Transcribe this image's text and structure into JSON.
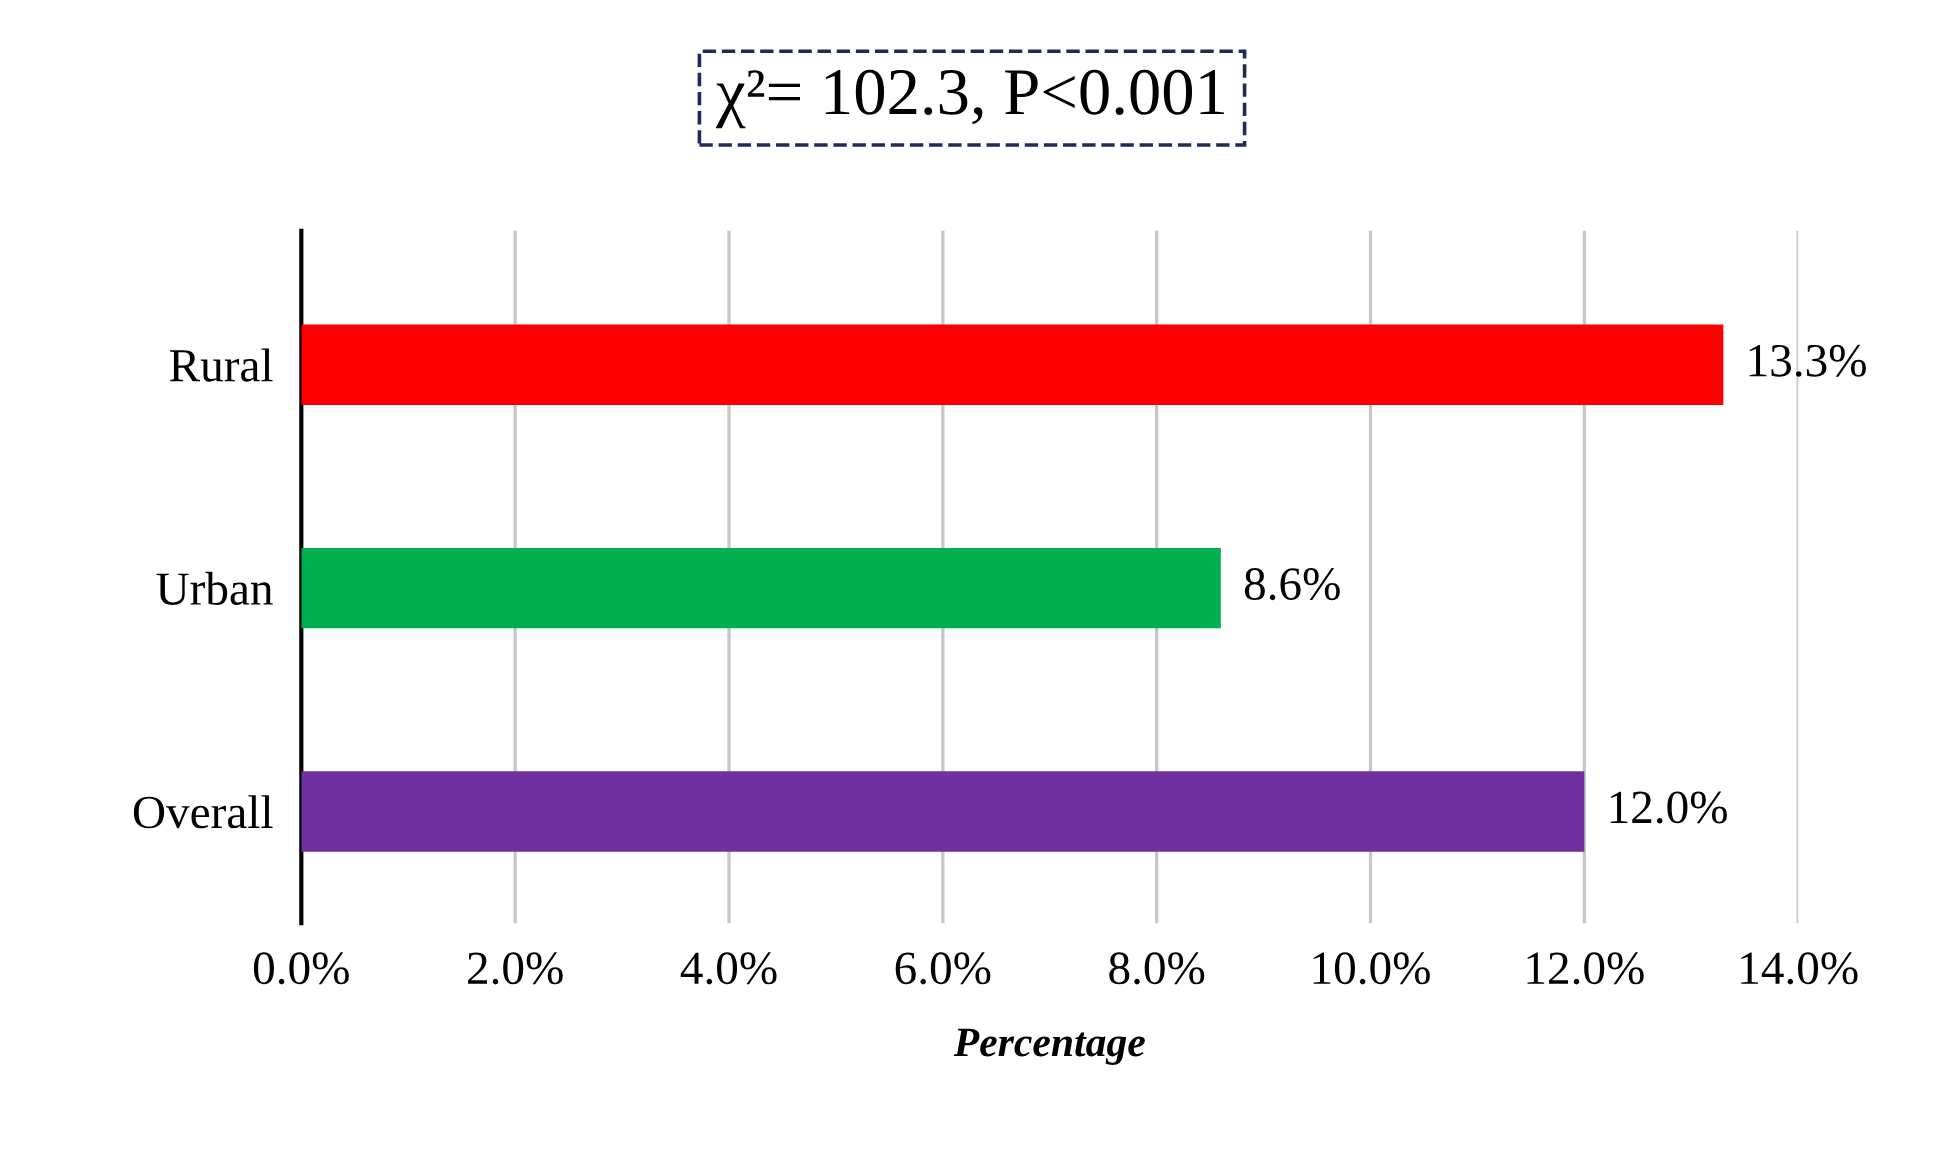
{
  "chart_data": {
    "type": "bar",
    "orientation": "horizontal",
    "title": "χ²= 102.3, P<0.001",
    "xlabel": "Percentage",
    "categories": [
      "Rural",
      "Urban",
      "Overall"
    ],
    "values": [
      13.3,
      8.6,
      12.0
    ],
    "colors": [
      "#ff0000",
      "#00b050",
      "#7030a0"
    ],
    "value_labels": [
      "13.3%",
      "8.6%",
      "12.0%"
    ],
    "xlim": [
      0,
      14
    ],
    "xticks": [
      {
        "value": 0,
        "label": "0.0%"
      },
      {
        "value": 2,
        "label": "2.0%"
      },
      {
        "value": 4,
        "label": "4.0%"
      },
      {
        "value": 6,
        "label": "6.0%"
      },
      {
        "value": 8,
        "label": "8.0%"
      },
      {
        "value": 10,
        "label": "10.0%"
      },
      {
        "value": 12,
        "label": "12.0%"
      },
      {
        "value": 14,
        "label": "14.0%"
      }
    ],
    "grid": "x"
  }
}
